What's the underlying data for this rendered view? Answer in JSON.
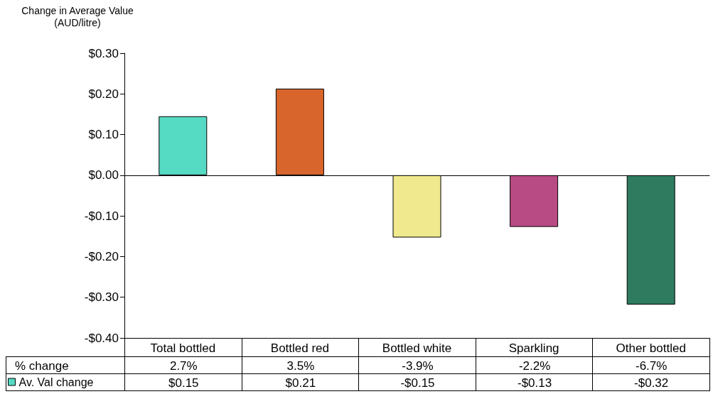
{
  "chart_data": {
    "type": "bar",
    "ylabel": "Change in Average Value\n(AUD/litre)",
    "categories": [
      "Total bottled",
      "Bottled red",
      "Bottled white",
      "Sparkling",
      "Other bottled"
    ],
    "series": [
      {
        "name": "Av. Val change",
        "color": "#55dac4",
        "colors": [
          "#55dac4",
          "#d8652b",
          "#f0e98e",
          "#b84a84",
          "#2f7b60"
        ],
        "values": [
          0.145,
          0.213,
          -0.153,
          -0.127,
          -0.318
        ],
        "value_labels": [
          "$0.15",
          "$0.21",
          "-$0.15",
          "-$0.13",
          "-$0.32"
        ]
      }
    ],
    "ylim": [
      -0.4,
      0.3
    ],
    "yticks": [
      {
        "value": -0.4,
        "label": "-$0.40"
      },
      {
        "value": -0.3,
        "label": "-$0.30"
      },
      {
        "value": -0.2,
        "label": "-$0.20"
      },
      {
        "value": -0.1,
        "label": "-$0.10"
      },
      {
        "value": 0,
        "label": "$0.00"
      },
      {
        "value": 0.1,
        "label": "$0.10"
      },
      {
        "value": 0.2,
        "label": "$0.20"
      },
      {
        "value": 0.3,
        "label": "$0.30"
      }
    ],
    "annotations": [
      "% change",
      "2.7%",
      "3.5%",
      "-3.9%",
      "-2.2%",
      "-6.7%"
    ],
    "legend": "bottom left"
  }
}
